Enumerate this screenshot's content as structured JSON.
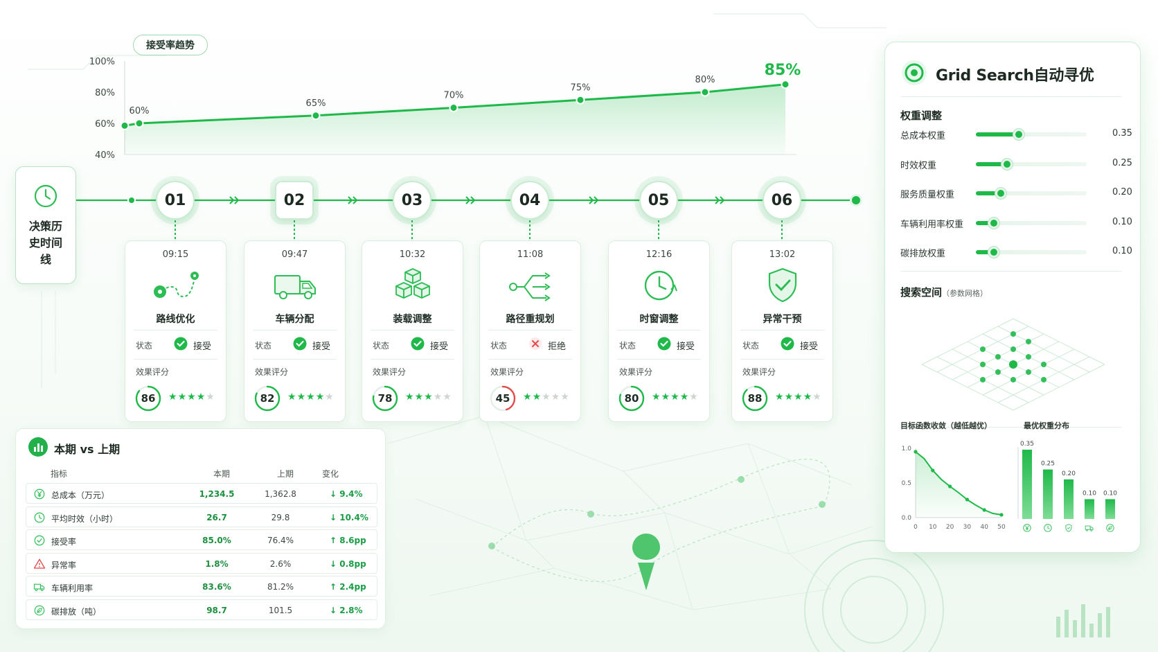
{
  "trend": {
    "title": "接受率趋势",
    "y_ticks": [
      "100%",
      "80%",
      "60%",
      "40%"
    ],
    "points": [
      {
        "label": "60%",
        "value": 60
      },
      {
        "label": "65%",
        "value": 65
      },
      {
        "label": "70%",
        "value": 70
      },
      {
        "label": "75%",
        "value": 75
      },
      {
        "label": "80%",
        "value": 80
      },
      {
        "label": "85%",
        "value": 85
      }
    ]
  },
  "history": {
    "title": "决策历史时间线"
  },
  "nodes": [
    "01",
    "02",
    "03",
    "04",
    "05",
    "06"
  ],
  "cards": [
    {
      "time": "09:15",
      "name": "路线优化",
      "icon": "route-icon",
      "status_label": "状态",
      "status": "接受",
      "accepted": true,
      "score_label": "效果评分",
      "score": "86",
      "stars": 4
    },
    {
      "time": "09:47",
      "name": "车辆分配",
      "icon": "truck-icon",
      "status_label": "状态",
      "status": "接受",
      "accepted": true,
      "score_label": "效果评分",
      "score": "82",
      "stars": 4
    },
    {
      "time": "10:32",
      "name": "装载调整",
      "icon": "boxes-icon",
      "status_label": "状态",
      "status": "接受",
      "accepted": true,
      "score_label": "效果评分",
      "score": "78",
      "stars": 3
    },
    {
      "time": "11:08",
      "name": "路径重规划",
      "icon": "branch-arrows-icon",
      "status_label": "状态",
      "status": "拒绝",
      "accepted": false,
      "score_label": "效果评分",
      "score": "45",
      "stars": 2
    },
    {
      "time": "12:16",
      "name": "时窗调整",
      "icon": "clock-icon",
      "status_label": "状态",
      "status": "接受",
      "accepted": true,
      "score_label": "效果评分",
      "score": "80",
      "stars": 4
    },
    {
      "time": "13:02",
      "name": "异常干预",
      "icon": "shield-check-icon",
      "status_label": "状态",
      "status": "接受",
      "accepted": true,
      "score_label": "效果评分",
      "score": "88",
      "stars": 4
    }
  ],
  "comparison": {
    "title": "本期 vs 上期",
    "headers": [
      "指标",
      "本期",
      "上期",
      "变化"
    ],
    "rows": [
      {
        "icon": "yuan-icon",
        "name": "总成本（万元）",
        "current": "1,234.5",
        "previous": "1,362.8",
        "change": "↓ 9.4%"
      },
      {
        "icon": "clock-icon",
        "name": "平均时效（小时）",
        "current": "26.7",
        "previous": "29.8",
        "change": "↓ 10.4%"
      },
      {
        "icon": "check-circle-icon",
        "name": "接受率",
        "current": "85.0%",
        "previous": "76.4%",
        "change": "↑ 8.6pp"
      },
      {
        "icon": "warning-icon",
        "name": "异常率",
        "current": "1.8%",
        "previous": "2.6%",
        "change": "↓ 0.8pp"
      },
      {
        "icon": "truck-icon",
        "name": "车辆利用率",
        "current": "83.6%",
        "previous": "81.2%",
        "change": "↑ 2.4pp"
      },
      {
        "icon": "leaf-icon",
        "name": "碳排放（吨）",
        "current": "98.7",
        "previous": "101.5",
        "change": "↓ 2.8%"
      }
    ]
  },
  "grid_search": {
    "title": "Grid Search自动寻优",
    "weights_title": "权重调整",
    "weights": [
      {
        "label": "总成本权重",
        "value": 0.35,
        "display": "0.35"
      },
      {
        "label": "时效权重",
        "value": 0.25,
        "display": "0.25"
      },
      {
        "label": "服务质量权重",
        "value": 0.2,
        "display": "0.20"
      },
      {
        "label": "车辆利用率权重",
        "value": 0.1,
        "display": "0.10"
      },
      {
        "label": "碳排放权重",
        "value": 0.1,
        "display": "0.10"
      }
    ],
    "space_title": "搜索空间",
    "space_note": "（参数网格）",
    "convergence": {
      "title": "目标函数收敛（越低越优）",
      "y_ticks": [
        "1.0",
        "0.5",
        "0.0"
      ],
      "x_ticks": [
        "0",
        "10",
        "20",
        "30",
        "40",
        "50"
      ],
      "points": [
        [
          0,
          0.95
        ],
        [
          5,
          0.85
        ],
        [
          10,
          0.68
        ],
        [
          15,
          0.55
        ],
        [
          20,
          0.45
        ],
        [
          25,
          0.36
        ],
        [
          30,
          0.26
        ],
        [
          35,
          0.18
        ],
        [
          40,
          0.11
        ],
        [
          45,
          0.06
        ],
        [
          50,
          0.04
        ]
      ]
    },
    "distribution": {
      "title": "最优权重分布",
      "values": [
        0.35,
        0.25,
        0.2,
        0.1,
        0.1
      ],
      "labels": [
        "0.35",
        "0.25",
        "0.20",
        "0.10",
        "0.10"
      ],
      "icons": [
        "yuan-icon",
        "clock-icon",
        "shield-icon",
        "truck-icon",
        "leaf-icon"
      ]
    }
  },
  "colors": {
    "accent": "#1fb94a",
    "reject": "#e44b4b",
    "border": "#cfecd7"
  }
}
